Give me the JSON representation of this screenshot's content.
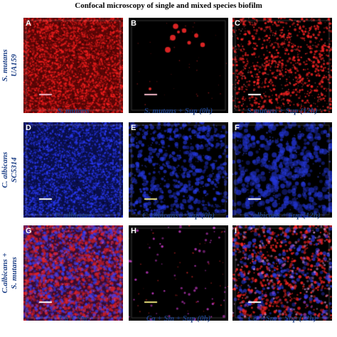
{
  "title": "Confocal microscopy of single and mixed species biofilm",
  "rows": [
    {
      "label_lines": [
        "S. mutans",
        "UA159"
      ],
      "panels": [
        {
          "letter": "A",
          "caption": "S. mutans",
          "pattern": "dense-red",
          "scalebar": "pink"
        },
        {
          "letter": "B",
          "caption": "S. mutans + Sup (0h)",
          "pattern": "sparse-red",
          "scalebar": "pink"
        },
        {
          "letter": "C",
          "caption": "S.mutans + Sup (12h)",
          "pattern": "speckle-red",
          "scalebar": "white"
        }
      ]
    },
    {
      "label_lines": [
        "C. albicans",
        "SC5314"
      ],
      "panels": [
        {
          "letter": "D",
          "caption": "C. albicans",
          "pattern": "dense-blue",
          "scalebar": "white"
        },
        {
          "letter": "E",
          "caption": "C. albicans + Sup (0h)",
          "pattern": "cells-blue",
          "scalebar": "yellow"
        },
        {
          "letter": "F",
          "caption": "C. albicans + Sup (12h)",
          "pattern": "cells-blue-large",
          "scalebar": "white"
        }
      ]
    },
    {
      "label_lines": [
        "C.albicans +",
        "S. mutans"
      ],
      "panels": [
        {
          "letter": "G",
          "caption": "Ca + Sm",
          "pattern": "mixed-dense",
          "scalebar": "white"
        },
        {
          "letter": "H",
          "caption": "Ca + Sm + Sup (0h)",
          "pattern": "mixed-sparse",
          "scalebar": "yellow"
        },
        {
          "letter": "I",
          "caption": "Ca + Sm + Sup (12h)",
          "pattern": "mixed-network",
          "scalebar": "white"
        }
      ]
    }
  ],
  "colors": {
    "label_blue": "#1c3f86",
    "red_stain": "#ff1f1f",
    "blue_stain": "#2b3cff",
    "magenta_overlay": "#d23cd2",
    "background": "#000000"
  }
}
